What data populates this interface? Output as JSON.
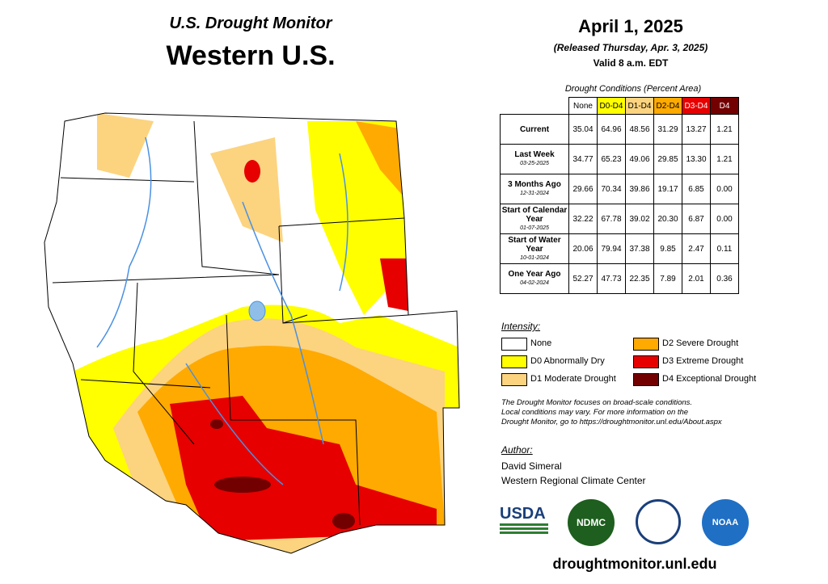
{
  "header": {
    "subtitle": "U.S. Drought Monitor",
    "title": "Western U.S."
  },
  "date": {
    "date": "April 1, 2025",
    "released": "(Released Thursday, Apr. 3, 2025)",
    "valid": "Valid 8 a.m. EDT"
  },
  "table": {
    "caption": "Drought Conditions (Percent Area)",
    "columns": [
      "None",
      "D0-D4",
      "D1-D4",
      "D2-D4",
      "D3-D4",
      "D4"
    ],
    "rows": [
      {
        "label": "Current",
        "values": [
          "35.04",
          "64.96",
          "48.56",
          "31.29",
          "13.27",
          "1.21"
        ]
      },
      {
        "label": "Last Week",
        "date": "03-25-2025",
        "values": [
          "34.77",
          "65.23",
          "49.06",
          "29.85",
          "13.30",
          "1.21"
        ]
      },
      {
        "label": "3 Months Ago",
        "date": "12-31-2024",
        "values": [
          "29.66",
          "70.34",
          "39.86",
          "19.17",
          "6.85",
          "0.00"
        ]
      },
      {
        "label": "Start of Calendar Year",
        "date": "01-07-2025",
        "values": [
          "32.22",
          "67.78",
          "39.02",
          "20.30",
          "6.87",
          "0.00"
        ]
      },
      {
        "label": "Start of Water Year",
        "date": "10-01-2024",
        "values": [
          "20.06",
          "79.94",
          "37.38",
          "9.85",
          "2.47",
          "0.11"
        ]
      },
      {
        "label": "One Year Ago",
        "date": "04-02-2024",
        "values": [
          "52.27",
          "47.73",
          "22.35",
          "7.89",
          "2.01",
          "0.36"
        ]
      }
    ]
  },
  "legend": {
    "title": "Intensity:",
    "items": [
      "None",
      "D0 Abnormally Dry",
      "D1 Moderate Drought",
      "D2 Severe Drought",
      "D3 Extreme Drought",
      "D4 Exceptional Drought"
    ]
  },
  "note": [
    "The Drought Monitor focuses on broad-scale conditions.",
    "Local conditions may vary. For more information on the",
    "Drought Monitor, go to https://droughtmonitor.unl.edu/About.aspx"
  ],
  "author": {
    "heading": "Author:",
    "name": "David Simeral",
    "org": "Western Regional Climate Center"
  },
  "logos": [
    "USDA",
    "NDMC",
    "NOAA"
  ],
  "footer": "droughtmonitor.unl.edu"
}
